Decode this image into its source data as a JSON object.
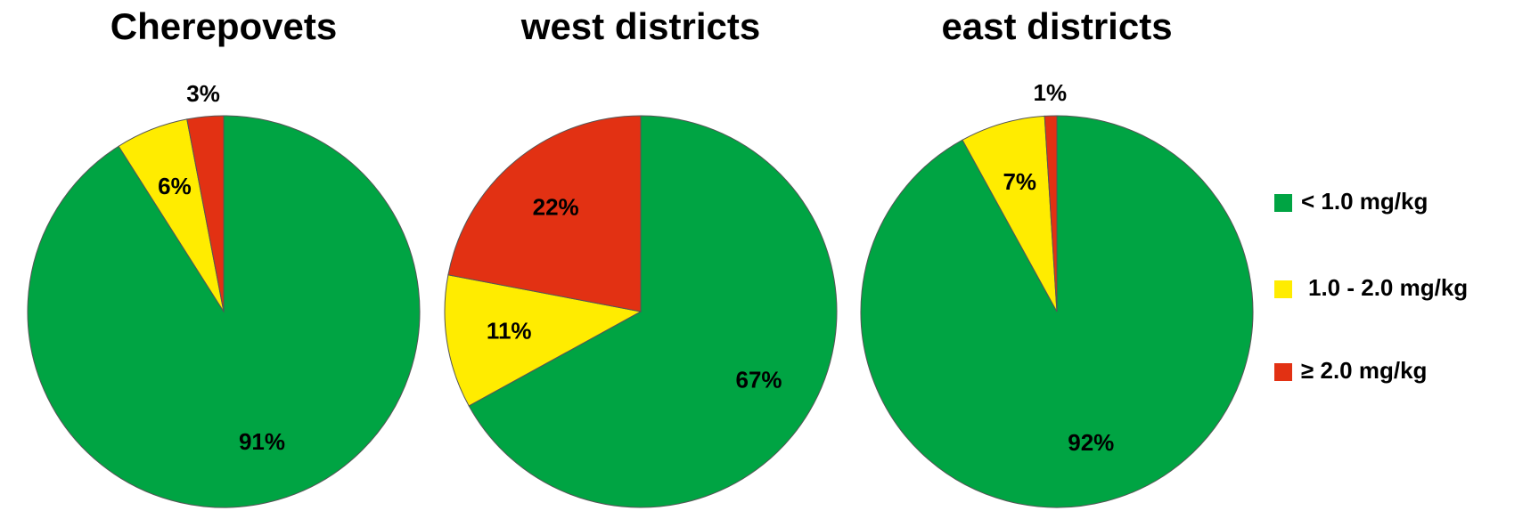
{
  "chart_data": [
    {
      "type": "pie",
      "title": "Cherepovets",
      "categories": [
        "< 1.0 mg/kg",
        "1.0 - 2.0 mg/kg",
        "≥  2.0 mg/kg"
      ],
      "colors": [
        "#00a443",
        "#ffec00",
        "#e23113"
      ],
      "values": [
        91,
        6,
        3
      ],
      "value_labels": [
        "91%",
        "6%",
        "3%"
      ]
    },
    {
      "type": "pie",
      "title": "west districts",
      "categories": [
        "< 1.0 mg/kg",
        "1.0 - 2.0 mg/kg",
        "≥  2.0 mg/kg"
      ],
      "colors": [
        "#00a443",
        "#ffec00",
        "#e23113"
      ],
      "values": [
        67,
        11,
        22
      ],
      "value_labels": [
        "67%",
        "11%",
        "22%"
      ]
    },
    {
      "type": "pie",
      "title": "east districts",
      "categories": [
        "< 1.0 mg/kg",
        "1.0 - 2.0 mg/kg",
        "≥  2.0 mg/kg"
      ],
      "colors": [
        "#00a443",
        "#ffec00",
        "#e23113"
      ],
      "values": [
        92,
        7,
        1
      ],
      "value_labels": [
        "92%",
        "7%",
        "1%"
      ]
    }
  ]
}
